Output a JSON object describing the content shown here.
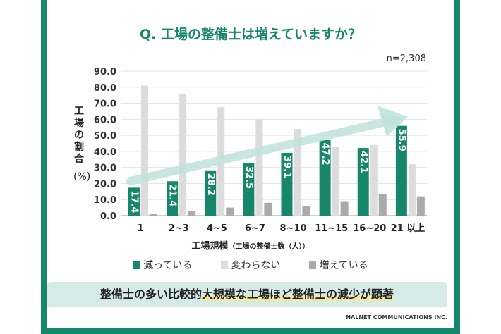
{
  "title": "Q. 工場の整備士は増えていますか？",
  "sample": "n=2,308",
  "ylabel": "工場の割合",
  "yunit": "(%)",
  "xlabel_main": "工場規模",
  "xlabel_sub": "（工場の整備士数（人））",
  "banner_pre": "整備士の多い比較的",
  "banner_hl": "大規模な工場ほど整備士の減少が顕著",
  "credit": "NALNET COMMUNICATIONS INC.",
  "chart_data": {
    "type": "bar",
    "title": "Q. 工場の整備士は増えていますか？",
    "xlabel": "工場規模（工場の整備士数（人））",
    "ylabel": "工場の割合 (%)",
    "ylim": [
      0,
      90
    ],
    "yticks": [
      "0.0",
      "10.0",
      "20.0",
      "30.0",
      "40.0",
      "50.0",
      "60.0",
      "70.0",
      "80.0",
      "90.0"
    ],
    "categories": [
      "1",
      "2~3",
      "4~5",
      "6~7",
      "8~10",
      "11~15",
      "16~20",
      "21 以上"
    ],
    "series": [
      {
        "name": "減っている",
        "color": "#17876b",
        "values": [
          17.4,
          21.4,
          28.2,
          32.5,
          39.1,
          47.2,
          42.1,
          55.9
        ],
        "labels": [
          "17.4",
          "21.4",
          "28.2",
          "32.5",
          "39.1",
          "47.2",
          "42.1",
          "55.9"
        ]
      },
      {
        "name": "変わらない",
        "color": "#dcdcdc",
        "values": [
          81,
          75.5,
          67.5,
          60,
          54,
          43,
          44,
          32
        ]
      },
      {
        "name": "増えている",
        "color": "#aaaaaa",
        "values": [
          1,
          3,
          5,
          8,
          6,
          9,
          13.5,
          12
        ]
      }
    ],
    "grid": true,
    "legend": "bottom",
    "annotation": "upward trend arrow"
  }
}
